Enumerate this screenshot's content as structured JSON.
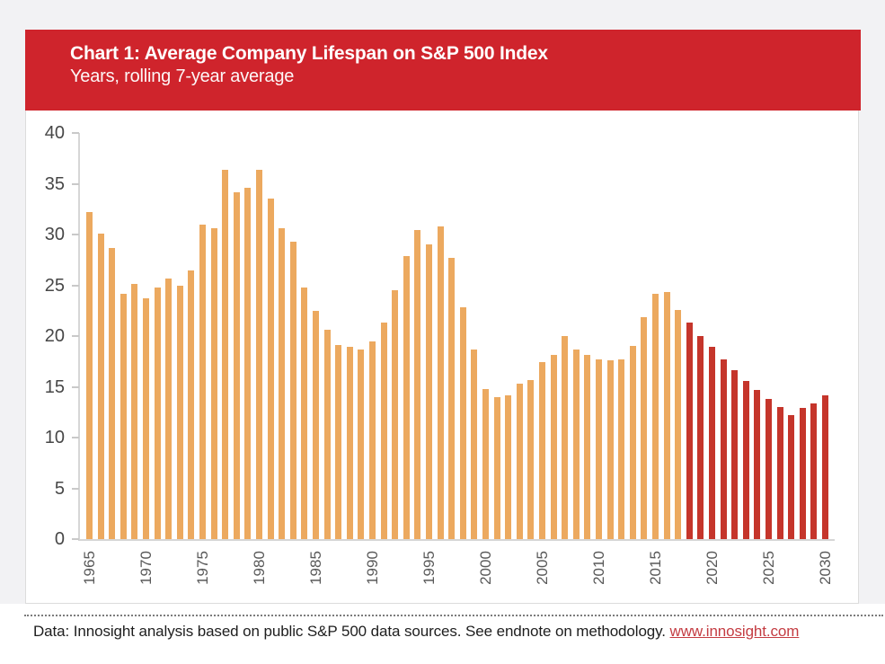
{
  "header": {
    "title": "Chart 1: Average Company Lifespan on S&P 500 Index",
    "subtitle": "Years, rolling 7-year average",
    "banner_color": "#CF242C"
  },
  "chart_data": {
    "type": "bar",
    "title": "Chart 1: Average Company Lifespan on S&P 500 Index",
    "subtitle": "Years, rolling 7-year average",
    "ylabel": "Years",
    "xlabel": "",
    "ylim": [
      0,
      40
    ],
    "yticks": [
      0,
      5,
      10,
      15,
      20,
      25,
      30,
      35,
      40
    ],
    "xtick_labeled_years": [
      1965,
      1970,
      1975,
      1980,
      1985,
      1990,
      1995,
      2000,
      2005,
      2010,
      2015,
      2020,
      2025,
      2030
    ],
    "grid": false,
    "legend": "none",
    "projection_start_year": 2018,
    "colors": {
      "historical": "#ECA95F",
      "projected": "#C5352B",
      "axis": "#D6D6D6",
      "tick_label": "#474747"
    },
    "years": [
      1965,
      1966,
      1967,
      1968,
      1969,
      1970,
      1971,
      1972,
      1973,
      1974,
      1975,
      1976,
      1977,
      1978,
      1979,
      1980,
      1981,
      1982,
      1983,
      1984,
      1985,
      1986,
      1987,
      1988,
      1989,
      1990,
      1991,
      1992,
      1993,
      1994,
      1995,
      1996,
      1997,
      1998,
      1999,
      2000,
      2001,
      2002,
      2003,
      2004,
      2005,
      2006,
      2007,
      2008,
      2009,
      2010,
      2011,
      2012,
      2013,
      2014,
      2015,
      2016,
      2017,
      2018,
      2019,
      2020,
      2021,
      2022,
      2023,
      2024,
      2025,
      2026,
      2027,
      2028,
      2029,
      2030
    ],
    "values": [
      32.2,
      30.1,
      28.7,
      24.2,
      25.1,
      23.7,
      24.8,
      25.7,
      25.0,
      26.5,
      31.0,
      30.6,
      36.4,
      34.2,
      34.6,
      36.4,
      33.5,
      30.6,
      29.3,
      24.8,
      22.5,
      20.6,
      19.1,
      18.9,
      18.7,
      19.5,
      21.3,
      24.5,
      27.9,
      30.4,
      29.0,
      30.8,
      27.7,
      22.8,
      18.7,
      14.8,
      14.0,
      14.2,
      15.3,
      15.7,
      17.4,
      18.1,
      20.0,
      18.7,
      18.1,
      17.7,
      17.6,
      17.7,
      19.0,
      21.9,
      24.2,
      24.3,
      22.6,
      21.3,
      20.0,
      18.9,
      17.7,
      16.6,
      15.6,
      14.7,
      13.8,
      13.0,
      12.2,
      12.9,
      13.4,
      14.2
    ]
  },
  "footer": {
    "text": "Data: Innosight analysis based on public S&P 500 data sources. See endnote on methodology. ",
    "link_label": "www.innosight.com",
    "link_color": "#C43C42",
    "text_color": "#1E1E1E"
  }
}
